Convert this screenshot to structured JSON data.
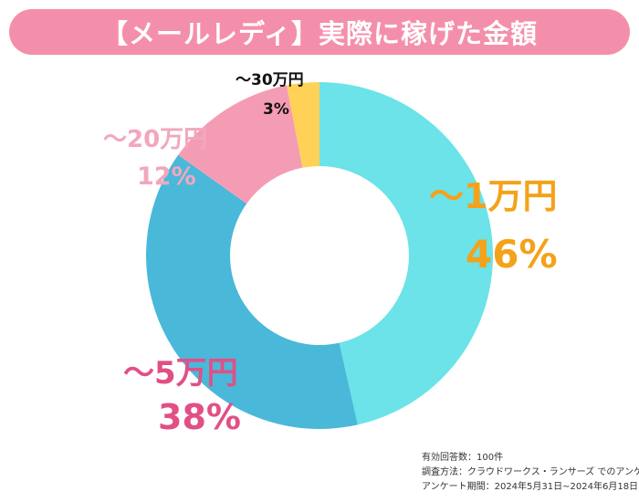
{
  "title": "【メールレディ】実際に稼げた金額",
  "chart_data": {
    "type": "pie",
    "donut": true,
    "title": "【メールレディ】実際に稼げた金額",
    "categories": [
      "～1万円",
      "～5万円",
      "～20万円",
      "～30万円"
    ],
    "values": [
      46,
      38,
      12,
      3
    ],
    "value_labels": [
      "46%",
      "38%",
      "12%",
      "3%"
    ],
    "colors": [
      "#6be3e8",
      "#49b8d9",
      "#f59cb5",
      "#ffd257"
    ],
    "label_colors": [
      "#f4a21a",
      "#e14f87",
      "#f2a7bd",
      "#111111"
    ]
  },
  "colors": {
    "title_bar": "#f48fab",
    "title_text": "#ffffff"
  },
  "footnote": {
    "respondents": "有効回答数：100件",
    "method": "調査方法：クラウドワークス・ランサーズ でのアンケート",
    "period": "アンケート期間：2024年5月31日~2024年6月18日"
  }
}
